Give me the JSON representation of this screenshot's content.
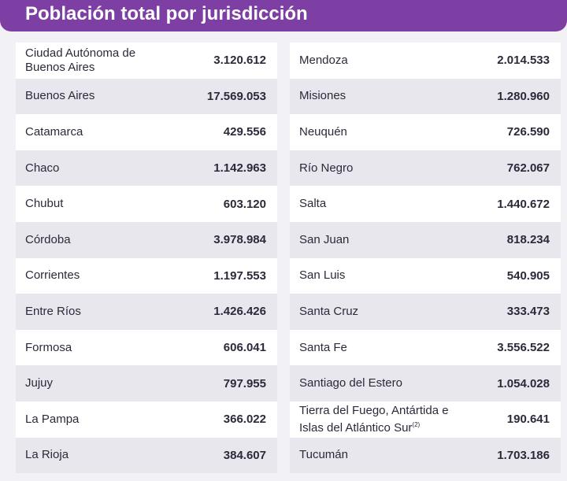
{
  "header": {
    "title": "Población total por jurisdicción"
  },
  "tables": [
    {
      "rows": [
        {
          "name": "Ciudad Autónoma de Buenos Aires",
          "population": "3.120.612"
        },
        {
          "name": "Buenos Aires",
          "population": "17.569.053"
        },
        {
          "name": "Catamarca",
          "population": "429.556"
        },
        {
          "name": "Chaco",
          "population": "1.142.963"
        },
        {
          "name": "Chubut",
          "population": "603.120"
        },
        {
          "name": "Córdoba",
          "population": "3.978.984"
        },
        {
          "name": "Corrientes",
          "population": "1.197.553"
        },
        {
          "name": "Entre Ríos",
          "population": "1.426.426"
        },
        {
          "name": "Formosa",
          "population": "606.041"
        },
        {
          "name": "Jujuy",
          "population": "797.955"
        },
        {
          "name": "La Pampa",
          "population": "366.022"
        },
        {
          "name": "La Rioja",
          "population": "384.607"
        }
      ]
    },
    {
      "rows": [
        {
          "name": "Mendoza",
          "population": "2.014.533"
        },
        {
          "name": "Misiones",
          "population": "1.280.960"
        },
        {
          "name": "Neuquén",
          "population": "726.590"
        },
        {
          "name": "Río Negro",
          "population": "762.067"
        },
        {
          "name": "Salta",
          "population": "1.440.672"
        },
        {
          "name": "San Juan",
          "population": "818.234"
        },
        {
          "name": "San Luis",
          "population": "540.905"
        },
        {
          "name": "Santa Cruz",
          "population": "333.473"
        },
        {
          "name": "Santa Fe",
          "population": "3.556.522"
        },
        {
          "name": "Santiago del Estero",
          "population": "1.054.028"
        },
        {
          "name": "Tierra del Fuego, Antártida e Islas del Atlántico Sur",
          "note": "(2)",
          "population": "190.641"
        },
        {
          "name": "Tucumán",
          "population": "1.703.186"
        }
      ]
    }
  ]
}
